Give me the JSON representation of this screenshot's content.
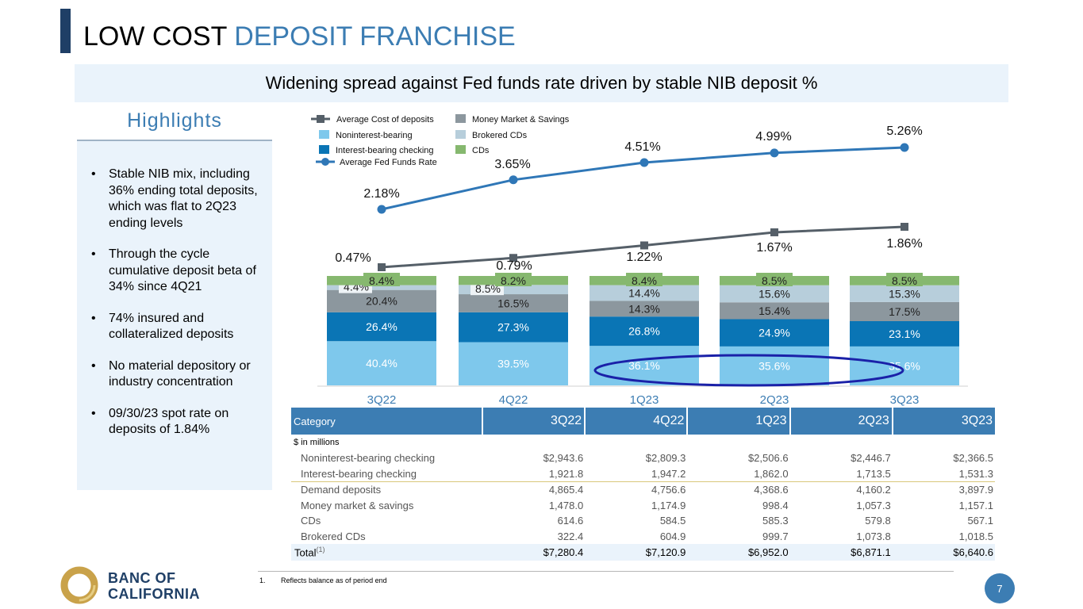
{
  "page": {
    "title_part1": "LOW COST",
    "title_part2": "DEPOSIT FRANCHISE",
    "banner": "Widening spread against Fed funds rate driven by stable NIB deposit %",
    "page_number": "7"
  },
  "highlights": {
    "title": "Highlights",
    "items": [
      "Stable NIB mix, including 36% ending total deposits, which was flat to 2Q23 ending levels",
      "Through the cycle cumulative deposit beta of 34% since 4Q21",
      "74% insured and collateralized deposits",
      "No material depository or industry concentration",
      "09/30/23 spot rate on deposits of 1.84%"
    ]
  },
  "chart_data": {
    "type": "bar",
    "stacked": true,
    "categories": [
      "3Q22",
      "4Q22",
      "1Q23",
      "2Q23",
      "3Q23"
    ],
    "series": [
      {
        "name": "Noninterest-bearing",
        "color": "#7ec8ec",
        "values": [
          40.4,
          39.5,
          36.1,
          35.6,
          35.6
        ],
        "labels": [
          "40.4%",
          "39.5%",
          "36.1%",
          "35.6%",
          "35.6%"
        ]
      },
      {
        "name": "Interest-bearing checking",
        "color": "#0a75b5",
        "values": [
          26.4,
          27.3,
          26.8,
          24.9,
          23.1
        ],
        "labels": [
          "26.4%",
          "27.3%",
          "26.8%",
          "24.9%",
          "23.1%"
        ]
      },
      {
        "name": "Money Market & Savings",
        "color": "#8c979e",
        "values": [
          20.4,
          16.5,
          14.3,
          15.4,
          17.5
        ],
        "labels": [
          "20.4%",
          "16.5%",
          "14.3%",
          "15.4%",
          "17.5%"
        ]
      },
      {
        "name": "Brokered CDs",
        "color": "#b7cedb",
        "values": [
          4.4,
          8.5,
          14.4,
          15.6,
          15.3
        ],
        "labels": [
          "4.4%",
          "8.5%",
          "14.4%",
          "15.6%",
          "15.3%"
        ]
      },
      {
        "name": "CDs",
        "color": "#86b86f",
        "values": [
          8.4,
          8.2,
          8.4,
          8.5,
          8.5
        ],
        "labels": [
          "8.4%",
          "8.2%",
          "8.4%",
          "8.5%",
          "8.5%"
        ]
      }
    ],
    "lines": [
      {
        "name": "Average Cost of deposits",
        "color": "#555f68",
        "marker": "square",
        "values": [
          0.47,
          0.79,
          1.22,
          1.67,
          1.86
        ],
        "labels": [
          "0.47%",
          "0.79%",
          "1.22%",
          "1.67%",
          "1.86%"
        ]
      },
      {
        "name": "Average Fed Funds Rate",
        "color": "#2f77b7",
        "marker": "circle",
        "values": [
          2.18,
          3.65,
          4.51,
          4.99,
          5.26
        ],
        "labels": [
          "2.18%",
          "3.65%",
          "4.51%",
          "4.99%",
          "5.26%"
        ]
      }
    ],
    "legend": [
      "Average Cost of deposits",
      "Noninterest-bearing",
      "Interest-bearing checking",
      "Average Fed Funds Rate",
      "Money Market & Savings",
      "Brokered CDs",
      "CDs"
    ],
    "legend_position": "top-left",
    "annotation": "NIB share highlighted for 1Q23–3Q23"
  },
  "table": {
    "header": [
      "Category",
      "3Q22",
      "4Q22",
      "1Q23",
      "2Q23",
      "3Q23"
    ],
    "units": "$ in millions",
    "rows": [
      {
        "label": "Noninterest-bearing checking",
        "values": [
          "$2,943.6",
          "$2,809.3",
          "$2,506.6",
          "$2,446.7",
          "$2,366.5"
        ]
      },
      {
        "label": "Interest-bearing checking",
        "values": [
          "1,921.8",
          "1,947.2",
          "1,862.0",
          "1,713.5",
          "1,531.3"
        ]
      },
      {
        "label": "Demand deposits",
        "values": [
          "4,865.4",
          "4,756.6",
          "4,368.6",
          "4,160.2",
          "3,897.9"
        ]
      },
      {
        "label": "Money market & savings",
        "values": [
          "1,478.0",
          "1,174.9",
          "998.4",
          "1,057.3",
          "1,157.1"
        ]
      },
      {
        "label": "CDs",
        "values": [
          "614.6",
          "584.5",
          "585.3",
          "579.8",
          "567.1"
        ]
      },
      {
        "label": "Brokered CDs",
        "values": [
          "322.4",
          "604.9",
          "999.7",
          "1,073.8",
          "1,018.5"
        ]
      }
    ],
    "total": {
      "label": "Total",
      "sup": "(1)",
      "values": [
        "$7,280.4",
        "$7,120.9",
        "$6,952.0",
        "$6,871.1",
        "$6,640.6"
      ]
    }
  },
  "footnote": {
    "num": "1.",
    "text": "Reflects balance as of period end"
  },
  "logo": {
    "line1": "BANC OF",
    "line2": "CALIFORNIA"
  }
}
